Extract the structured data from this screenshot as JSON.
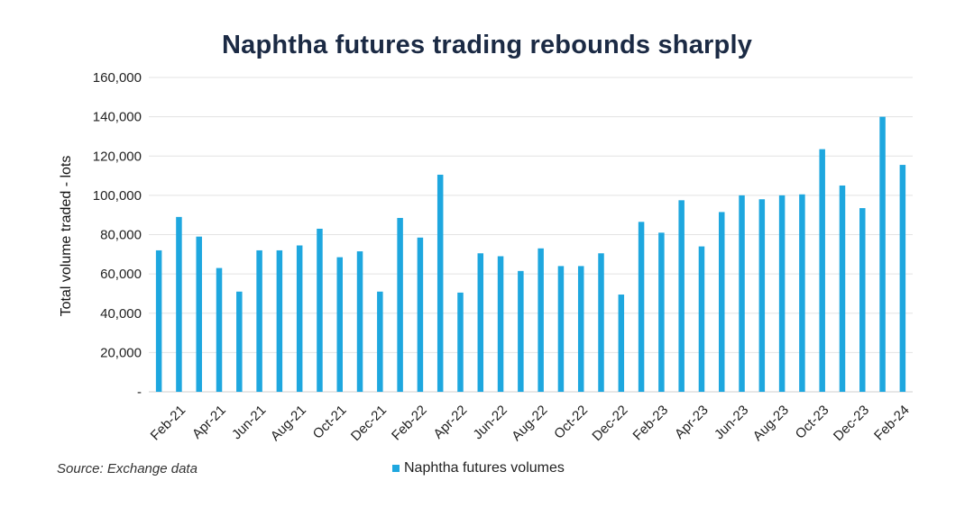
{
  "chart_data": {
    "type": "bar",
    "title": "Naphtha futures trading rebounds sharply",
    "xlabel": "",
    "ylabel": "Total volume traded - lots",
    "ylim": [
      0,
      160000
    ],
    "yticks": [
      0,
      20000,
      40000,
      60000,
      80000,
      100000,
      120000,
      140000,
      160000
    ],
    "ytick_labels": [
      "-",
      "20,000",
      "40,000",
      "60,000",
      "80,000",
      "100,000",
      "120,000",
      "140,000",
      "160,000"
    ],
    "grid": true,
    "legend_position": "bottom-center",
    "bar_color": "#1ea7df",
    "categories": [
      "Jan-21",
      "Feb-21",
      "Mar-21",
      "Apr-21",
      "May-21",
      "Jun-21",
      "Jul-21",
      "Aug-21",
      "Sep-21",
      "Oct-21",
      "Nov-21",
      "Dec-21",
      "Jan-22",
      "Feb-22",
      "Mar-22",
      "Apr-22",
      "May-22",
      "Jun-22",
      "Jul-22",
      "Aug-22",
      "Sep-22",
      "Oct-22",
      "Nov-22",
      "Dec-22",
      "Jan-23",
      "Feb-23",
      "Mar-23",
      "Apr-23",
      "May-23",
      "Jun-23",
      "Jul-23",
      "Aug-23",
      "Sep-23",
      "Oct-23",
      "Nov-23",
      "Dec-23",
      "Jan-24",
      "Feb-24"
    ],
    "tick_labels": [
      "Feb-21",
      "Apr-21",
      "Jun-21",
      "Aug-21",
      "Oct-21",
      "Dec-21",
      "Feb-22",
      "Apr-22",
      "Jun-22",
      "Aug-22",
      "Oct-22",
      "Dec-22",
      "Feb-23",
      "Apr-23",
      "Jun-23",
      "Aug-23",
      "Oct-23",
      "Dec-23",
      "Feb-24"
    ],
    "series": [
      {
        "name": "Naphtha futures volumes",
        "values": [
          72000,
          89000,
          79000,
          63000,
          51000,
          72000,
          72000,
          74500,
          83000,
          68500,
          71500,
          51000,
          88500,
          78500,
          110500,
          50500,
          70500,
          69000,
          61500,
          73000,
          64000,
          64000,
          70500,
          49500,
          86500,
          81000,
          97500,
          74000,
          91500,
          100000,
          98000,
          100000,
          100500,
          123500,
          105000,
          93500,
          140000,
          115500
        ]
      }
    ]
  },
  "source_note": "Source: Exchange data"
}
